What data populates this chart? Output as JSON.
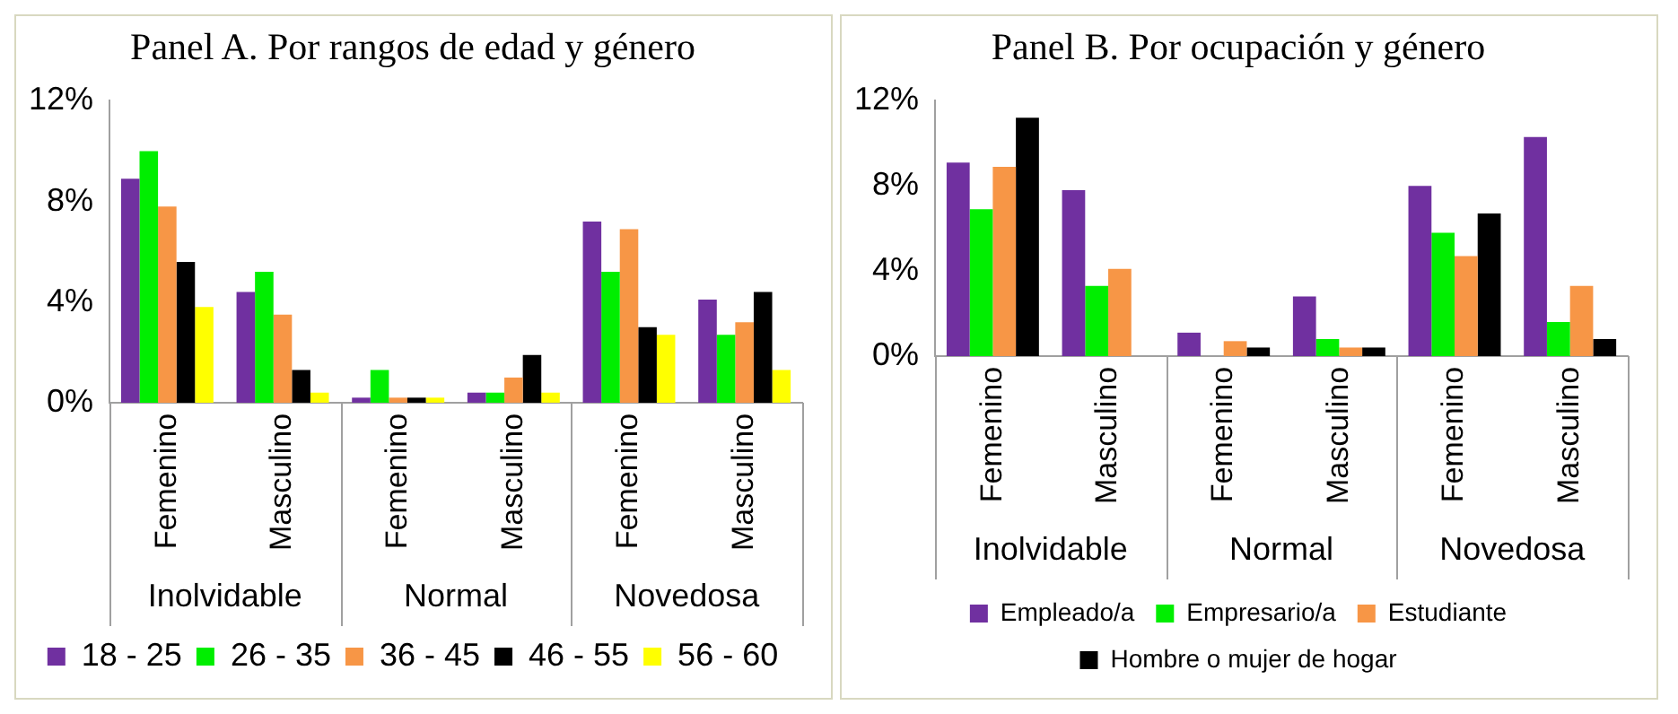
{
  "chart_data": [
    {
      "type": "bar",
      "title": "Panel A. Por rangos de edad y género",
      "categories": [
        "Femenino",
        "Masculino",
        "Femenino",
        "Masculino",
        "Femenino",
        "Masculino"
      ],
      "annotations": [
        "Inolvidable",
        "Normal",
        "Novedosa"
      ],
      "series": [
        {
          "name": "18 - 25",
          "color": "#7030a0",
          "values": [
            8.9,
            4.4,
            0.2,
            0.4,
            7.2,
            4.1
          ]
        },
        {
          "name": "26 - 35",
          "color": "#00ee00",
          "values": [
            10.0,
            5.2,
            1.3,
            0.4,
            5.2,
            2.7
          ]
        },
        {
          "name": "36 - 45",
          "color": "#f79646",
          "values": [
            7.8,
            3.5,
            0.2,
            1.0,
            6.9,
            3.2
          ]
        },
        {
          "name": "46 - 55",
          "color": "#000000",
          "values": [
            5.6,
            1.3,
            0.2,
            1.9,
            3.0,
            4.4
          ]
        },
        {
          "name": "56 - 60",
          "color": "#ffff00",
          "values": [
            3.8,
            0.4,
            0.2,
            0.4,
            2.7,
            1.3
          ]
        }
      ],
      "ylim": [
        0,
        12
      ],
      "yticks": [
        {
          "value": 0,
          "label": "0%"
        },
        {
          "value": 4,
          "label": "4%"
        },
        {
          "value": 8,
          "label": "8%"
        },
        {
          "value": 12,
          "label": "12%"
        }
      ],
      "grid": false,
      "legend": "bottom"
    },
    {
      "type": "bar",
      "title": "Panel B. Por ocupación y género",
      "categories": [
        "Femenino",
        "Masculino",
        "Femenino",
        "Masculino",
        "Femenino",
        "Masculino"
      ],
      "annotations": [
        "Inolvidable",
        "Normal",
        "Novedosa"
      ],
      "series": [
        {
          "name": "Empleado/a",
          "color": "#7030a0",
          "values": [
            9.1,
            7.8,
            1.1,
            2.8,
            8.0,
            10.3
          ]
        },
        {
          "name": "Empresario/a",
          "color": "#00ee00",
          "values": [
            6.9,
            3.3,
            null,
            0.8,
            5.8,
            1.6
          ]
        },
        {
          "name": "Estudiante",
          "color": "#f79646",
          "values": [
            8.9,
            4.1,
            0.7,
            0.4,
            4.7,
            3.3
          ]
        },
        {
          "name": "Hombre o mujer de hogar",
          "color": "#000000",
          "values": [
            11.2,
            null,
            0.4,
            0.4,
            6.7,
            0.8
          ]
        }
      ],
      "ylim": [
        0,
        12
      ],
      "yticks": [
        {
          "value": 0,
          "label": "0%"
        },
        {
          "value": 4,
          "label": "4%"
        },
        {
          "value": 8,
          "label": "8%"
        },
        {
          "value": 12,
          "label": "12%"
        }
      ],
      "grid": false,
      "legend": "bottom"
    }
  ]
}
